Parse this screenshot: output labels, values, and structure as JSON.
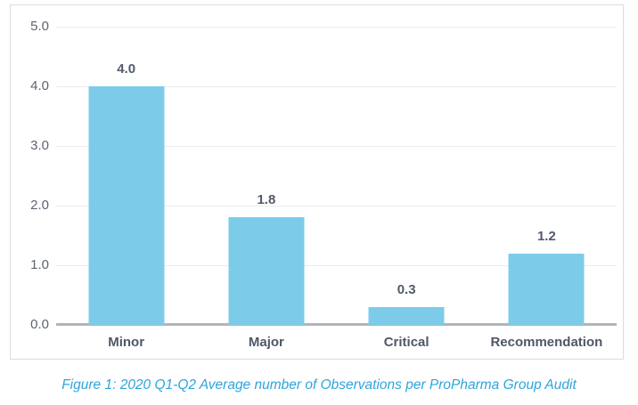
{
  "caption": {
    "text": "Figure 1: 2020 Q1-Q2 Average number of Observations per ProPharma Group Audit"
  },
  "colors": {
    "bar_fill": "#7cccE9",
    "axis_line": "#b2b4b8",
    "gridline": "#eaebed",
    "tick_label": "#5d6370",
    "bold_label": "#4f5767",
    "caption_text": "#2ca5dc",
    "panel_border": "#dcdcdf"
  },
  "chart_data": {
    "type": "bar",
    "title": "",
    "xlabel": "",
    "ylabel": "",
    "categories": [
      "Minor",
      "Major",
      "Critical",
      "Recommendation"
    ],
    "values": [
      4.0,
      1.8,
      0.3,
      1.2
    ],
    "value_labels": [
      "4.0",
      "1.8",
      "0.3",
      "1.2"
    ],
    "ylim": [
      0,
      5
    ],
    "ytick_values": [
      5,
      4,
      3,
      2,
      1,
      0
    ],
    "ytick_labels": [
      "5.0",
      "4.0",
      "3.0",
      "2.0",
      "1.0",
      "0.0"
    ],
    "grid": "horizontal",
    "legend": "none"
  }
}
